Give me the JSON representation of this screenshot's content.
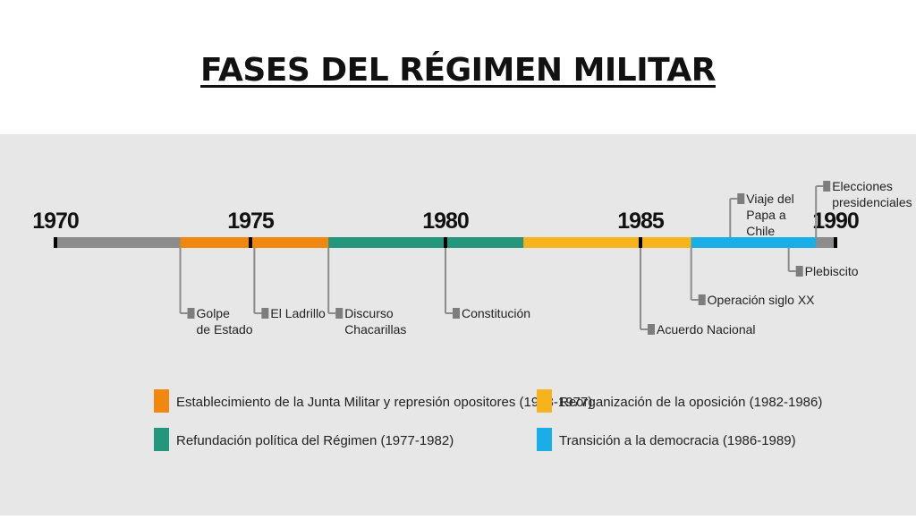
{
  "title": "FASES DEL RÉGIMEN MILITAR",
  "timeline": {
    "start": 1970,
    "end": 1990,
    "years": [
      1970,
      1975,
      1980,
      1985,
      1990
    ],
    "base_color": "#8c8c8c",
    "phases": [
      {
        "start": 1973.2,
        "end": 1977,
        "color": "#f0870e"
      },
      {
        "start": 1977,
        "end": 1982,
        "color": "#23967c"
      },
      {
        "start": 1982,
        "end": 1986.3,
        "color": "#f7b31c"
      },
      {
        "start": 1986.3,
        "end": 1989.5,
        "color": "#19aee7"
      }
    ],
    "events": [
      {
        "year": 1973.2,
        "side": "below",
        "level": 1,
        "lines": [
          "Golpe",
          "de Estado"
        ]
      },
      {
        "year": 1975.1,
        "side": "below",
        "level": 1,
        "lines": [
          "El Ladrillo"
        ]
      },
      {
        "year": 1977,
        "side": "below",
        "level": 1,
        "lines": [
          "Discurso",
          "Chacarillas"
        ]
      },
      {
        "year": 1980,
        "side": "below",
        "level": 1,
        "lines": [
          "Constitución"
        ]
      },
      {
        "year": 1985,
        "side": "below",
        "level": 3,
        "lines": [
          "Acuerdo Nacional"
        ]
      },
      {
        "year": 1986.3,
        "side": "below",
        "level": 2,
        "lines": [
          "Operación siglo XX"
        ]
      },
      {
        "year": 1988.8,
        "side": "below",
        "level": 0,
        "lines": [
          "Plebiscito"
        ]
      },
      {
        "year": 1987.3,
        "side": "above",
        "level": 1,
        "lines": [
          "Viaje del",
          "Papa a",
          "Chile"
        ]
      },
      {
        "year": 1989.5,
        "side": "above",
        "level": 2,
        "lines": [
          "Elecciones",
          "presidenciales"
        ]
      }
    ]
  },
  "legend": [
    {
      "color": "#f0870e",
      "label": "Establecimiento de la Junta Militar y represión opositores (1973-1977)"
    },
    {
      "color": "#f7b31c",
      "label": "Reorganización de la oposición (1982-1986)"
    },
    {
      "color": "#23967c",
      "label": "Refundación política del Régimen (1977-1982)"
    },
    {
      "color": "#19aee7",
      "label": "Transición a la democracia (1986-1989)"
    }
  ]
}
